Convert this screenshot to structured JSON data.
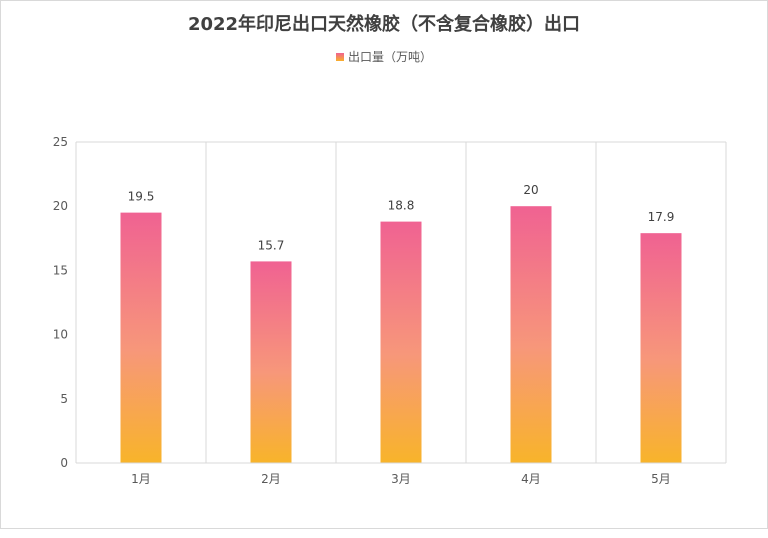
{
  "chart_data": {
    "type": "bar",
    "title": "2022年印尼出口天然橡胶（不含复合橡胶）出口",
    "categories": [
      "1月",
      "2月",
      "3月",
      "4月",
      "5月"
    ],
    "series": [
      {
        "name": "出口量（万吨）",
        "values": [
          19.5,
          15.7,
          18.8,
          20,
          17.9
        ]
      }
    ],
    "data_labels": [
      "19.5",
      "15.7",
      "18.8",
      "20",
      "17.9"
    ],
    "y_ticks": [
      "0",
      "5",
      "10",
      "15",
      "20",
      "25"
    ],
    "ylim": [
      0,
      25
    ],
    "xlabel": "",
    "ylabel": "",
    "legend_position": "top",
    "grid": "vertical category separators",
    "colors": {
      "bar_top": "#f06292",
      "bar_bottom": "#f8b42a",
      "grid": "#d9d9d9"
    }
  }
}
